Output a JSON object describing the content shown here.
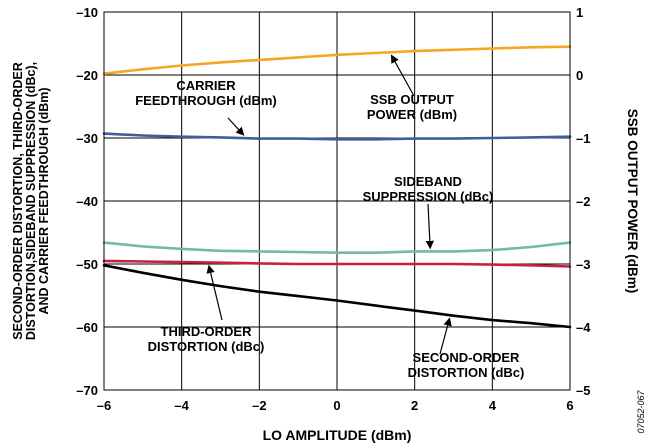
{
  "chart_data": {
    "type": "line",
    "xlabel": "LO AMPLITUDE (dBm)",
    "ylabel_left": [
      "SECOND-ORDER DISTORTION, THIRD-ORDER",
      "DISTORTION,SIDEBAND SUPPRESSION (dBc),",
      "AND CARRIER FEEDTHROUGH (dBm)"
    ],
    "ylabel_right": "SSB OUTPUT POWER (dBm)",
    "xlim": [
      -6,
      6
    ],
    "ylim_left": [
      -70,
      -10
    ],
    "ylim_right": [
      -5,
      1
    ],
    "x_ticks": [
      -6,
      -4,
      -2,
      0,
      2,
      4,
      6
    ],
    "x_tick_labels": [
      "–6",
      "–4",
      "–2",
      "0",
      "2",
      "4",
      "6"
    ],
    "y_left_ticks": [
      -10,
      -20,
      -30,
      -40,
      -50,
      -60,
      -70
    ],
    "y_left_tick_labels": [
      "–10",
      "–20",
      "–30",
      "–40",
      "–50",
      "–60",
      "–70"
    ],
    "y_right_ticks": [
      1,
      0,
      -1,
      -2,
      -3,
      -4,
      -5
    ],
    "y_right_tick_labels": [
      "1",
      "0",
      "–1",
      "–2",
      "–3",
      "–4",
      "–5"
    ],
    "grid": true,
    "series": [
      {
        "name": "SSB OUTPUT POWER (dBm)",
        "axis": "right",
        "color": "#f5a623",
        "x": [
          -6,
          -5,
          -4,
          -3,
          -2,
          -1,
          0,
          1,
          2,
          3,
          4,
          5,
          6
        ],
        "y": [
          0.02,
          0.09,
          0.15,
          0.2,
          0.24,
          0.28,
          0.32,
          0.35,
          0.38,
          0.4,
          0.42,
          0.44,
          0.45
        ]
      },
      {
        "name": "CARRIER FEEDTHROUGH (dBm)",
        "axis": "left",
        "color": "#3e5e9f",
        "x": [
          -6,
          -5,
          -4,
          -3,
          -2,
          -1,
          0,
          1,
          2,
          3,
          4,
          5,
          6
        ],
        "y": [
          -29.3,
          -29.6,
          -29.8,
          -29.9,
          -30.1,
          -30.1,
          -30.2,
          -30.2,
          -30.1,
          -30.1,
          -30.0,
          -29.9,
          -29.8
        ]
      },
      {
        "name": "SIDEBAND SUPPRESSION (dBc)",
        "axis": "left",
        "color": "#6cbf96",
        "x": [
          -6,
          -5,
          -4,
          -3,
          -2,
          -1,
          0,
          1,
          2,
          3,
          4,
          5,
          6
        ],
        "y": [
          -46.6,
          -47.2,
          -47.6,
          -47.9,
          -48.0,
          -48.1,
          -48.2,
          -48.2,
          -48.0,
          -48.0,
          -47.8,
          -47.3,
          -46.6
        ]
      },
      {
        "name": "THIRD-ORDER DISTORTION (dBc)",
        "axis": "left",
        "color": "#c8203f",
        "x": [
          -6,
          -5,
          -4,
          -3,
          -2,
          -1,
          0,
          1,
          2,
          3,
          4,
          5,
          6
        ],
        "y": [
          -49.5,
          -49.6,
          -49.7,
          -49.8,
          -49.9,
          -50.0,
          -50.0,
          -50.0,
          -50.0,
          -50.0,
          -50.1,
          -50.2,
          -50.4
        ]
      },
      {
        "name": "SECOND-ORDER DISTORTION (dBc)",
        "axis": "left",
        "color": "#000000",
        "x": [
          -6,
          -5,
          -4,
          -3,
          -2,
          -1,
          0,
          1,
          2,
          3,
          4,
          5,
          6
        ],
        "y": [
          -50.2,
          -51.4,
          -52.5,
          -53.5,
          -54.4,
          -55.1,
          -55.8,
          -56.6,
          -57.4,
          -58.2,
          -58.9,
          -59.4,
          -60.0
        ]
      }
    ],
    "annotations": [
      {
        "lines": [
          "CARRIER",
          "FEEDTHROUGH (dBm)"
        ],
        "target_series": 1,
        "target_x": -2.4
      },
      {
        "lines": [
          "SSB OUTPUT",
          "POWER (dBm)"
        ],
        "target_series": 0,
        "target_x": 1.4
      },
      {
        "lines": [
          "SIDEBAND",
          "SUPPRESSION (dBc)"
        ],
        "target_series": 2,
        "target_x": 2.4
      },
      {
        "lines": [
          "THIRD-ORDER",
          "DISTORTION (dBc)"
        ],
        "target_series": 3,
        "target_x": -3.3
      },
      {
        "lines": [
          "SECOND-ORDER",
          "DISTORTION (dBc)"
        ],
        "target_series": 4,
        "target_x": 2.9
      }
    ],
    "figure_id": "07052-067"
  }
}
